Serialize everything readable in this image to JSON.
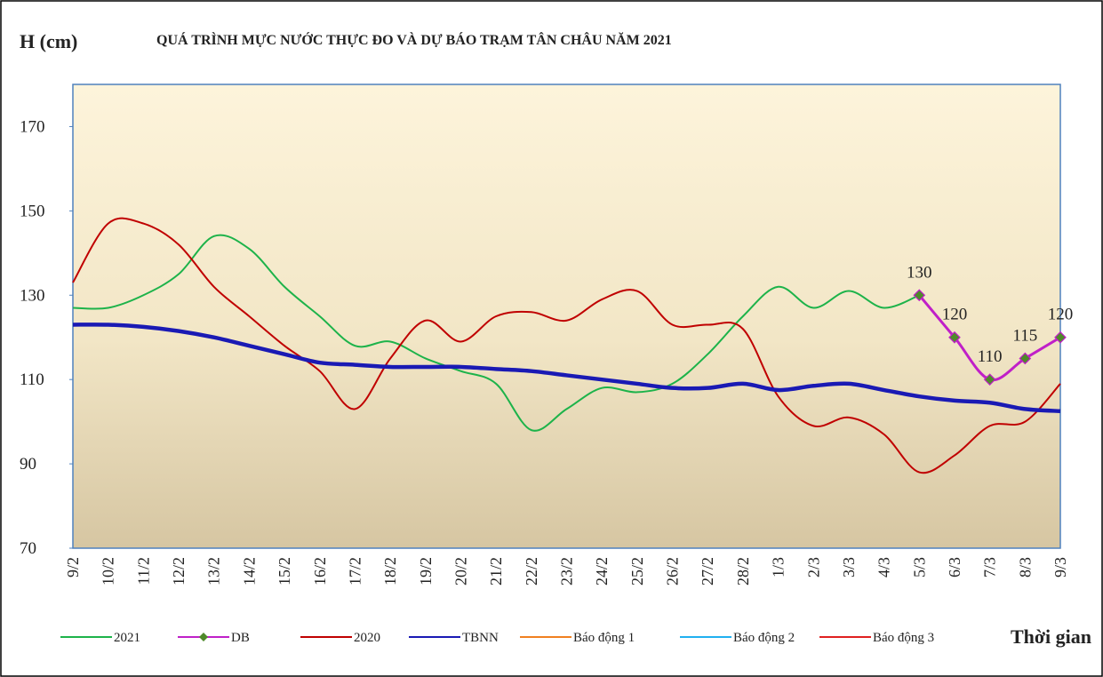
{
  "chart_data": {
    "type": "line",
    "title": "QUÁ TRÌNH MỰC NƯỚC THỰC ĐO VÀ DỰ BÁO TRẠM TÂN CHÂU NĂM 2021",
    "y_label": "H (cm)",
    "x_label": "Thời gian",
    "categories": [
      "9/2",
      "10/2",
      "11/2",
      "12/2",
      "13/2",
      "14/2",
      "15/2",
      "16/2",
      "17/2",
      "18/2",
      "19/2",
      "20/2",
      "21/2",
      "22/2",
      "23/2",
      "24/2",
      "25/2",
      "26/2",
      "27/2",
      "28/2",
      "1/3",
      "2/3",
      "3/3",
      "4/3",
      "5/3",
      "6/3",
      "7/3",
      "8/3",
      "9/3"
    ],
    "series": [
      {
        "name": "2021",
        "color": "#1db34a",
        "values": [
          127,
          127,
          130,
          135,
          144,
          141,
          132,
          125,
          118,
          119,
          115,
          112,
          109,
          98,
          103,
          108,
          107,
          109,
          116,
          125,
          132,
          127,
          131,
          127,
          130,
          null,
          null,
          null,
          null
        ]
      },
      {
        "name": "DB",
        "color": "#c020c8",
        "marker_color": "#4f8a2a",
        "values": [
          null,
          null,
          null,
          null,
          null,
          null,
          null,
          null,
          null,
          null,
          null,
          null,
          null,
          null,
          null,
          null,
          null,
          null,
          null,
          null,
          null,
          null,
          null,
          null,
          130,
          120,
          110,
          115,
          120
        ]
      },
      {
        "name": "2020",
        "color": "#c00000",
        "values": [
          133,
          147,
          147,
          142,
          132,
          125,
          118,
          112,
          103,
          115,
          124,
          119,
          125,
          126,
          124,
          129,
          131,
          123,
          123,
          122,
          106,
          99,
          101,
          97,
          88,
          92,
          99,
          100,
          109
        ]
      },
      {
        "name": "TBNN",
        "color": "#1a1ab4",
        "values": [
          123,
          123,
          122.5,
          121.5,
          120,
          118,
          116,
          114,
          113.5,
          113,
          113,
          113,
          112.5,
          112,
          111,
          110,
          109,
          108,
          108,
          109,
          107.5,
          108.5,
          109,
          107.5,
          106,
          105,
          104.5,
          103,
          102.5
        ]
      },
      {
        "name": "Báo động 1",
        "color": "#f08020",
        "values": [
          null,
          null,
          null,
          null,
          null,
          null,
          null,
          null,
          null,
          null,
          null,
          null,
          null,
          null,
          null,
          null,
          null,
          null,
          null,
          null,
          null,
          null,
          null,
          null,
          null,
          null,
          null,
          null,
          null
        ]
      },
      {
        "name": "Báo động 2",
        "color": "#20b0f0",
        "values": [
          null,
          null,
          null,
          null,
          null,
          null,
          null,
          null,
          null,
          null,
          null,
          null,
          null,
          null,
          null,
          null,
          null,
          null,
          null,
          null,
          null,
          null,
          null,
          null,
          null,
          null,
          null,
          null,
          null
        ]
      },
      {
        "name": "Báo động 3",
        "color": "#e02020",
        "values": [
          null,
          null,
          null,
          null,
          null,
          null,
          null,
          null,
          null,
          null,
          null,
          null,
          null,
          null,
          null,
          null,
          null,
          null,
          null,
          null,
          null,
          null,
          null,
          null,
          null,
          null,
          null,
          null,
          null
        ]
      }
    ],
    "ylim": [
      70,
      180
    ],
    "yticks": [
      70,
      90,
      110,
      130,
      150,
      170
    ]
  }
}
